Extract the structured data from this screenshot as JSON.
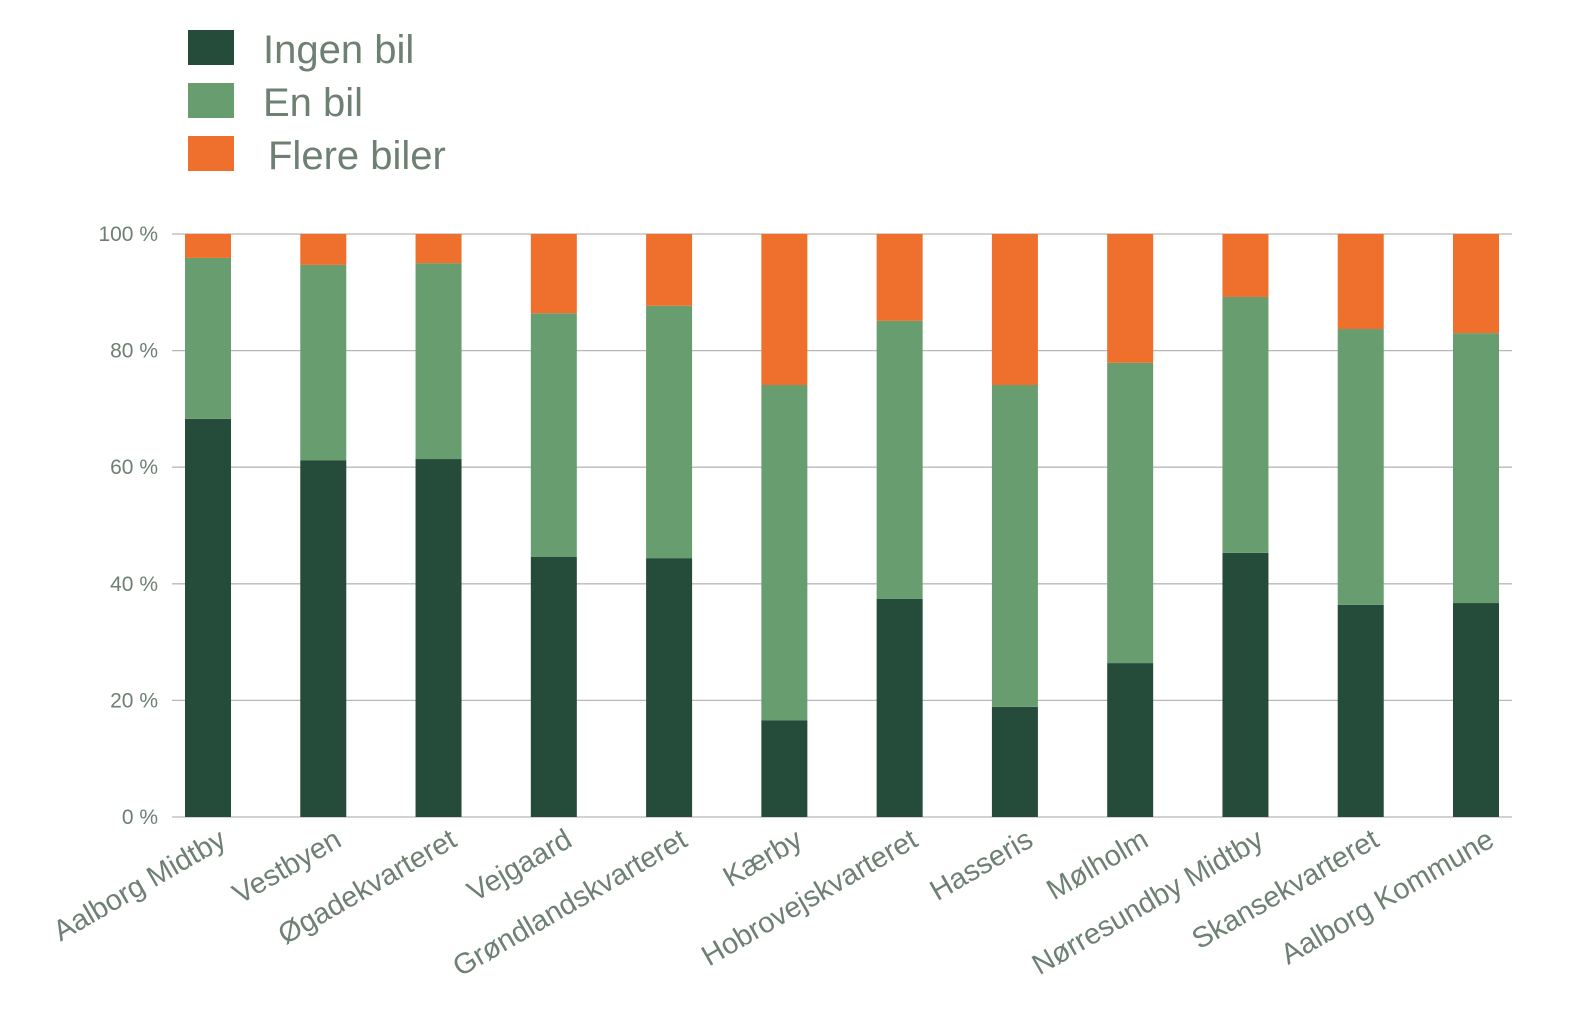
{
  "chart_data": {
    "type": "bar",
    "stacked": true,
    "percent": true,
    "categories": [
      "Aalborg Midtby",
      "Vestbyen",
      "Øgadekvarteret",
      "Vejgaard",
      "Grøndlandskvarteret",
      "Kærby",
      "Hobrovejskvarteret",
      "Hasseris",
      "Mølholm",
      "Nørresundby Midtby",
      "Skansekvarteret",
      "Aalborg Kommune"
    ],
    "series": [
      {
        "name": "Ingen bil",
        "color": "#254b3a",
        "values": [
          68.3,
          61.2,
          61.4,
          44.6,
          44.4,
          16.6,
          37.4,
          18.9,
          26.4,
          45.3,
          36.4,
          36.7
        ]
      },
      {
        "name": "En bil",
        "color": "#679d6f",
        "values": [
          27.6,
          33.5,
          33.6,
          41.8,
          43.3,
          57.5,
          47.7,
          55.2,
          51.5,
          43.9,
          47.3,
          46.3
        ]
      },
      {
        "name": "Flere biler",
        "color": "#ee702c",
        "values": [
          4.1,
          5.3,
          5.0,
          13.6,
          12.3,
          25.9,
          14.9,
          25.9,
          22.1,
          10.8,
          16.3,
          17.0
        ]
      }
    ],
    "ylim": [
      0,
      100
    ],
    "yticks": [
      "0 %",
      "20 %",
      "40 %",
      "60 %",
      "80 %",
      "100 %"
    ],
    "grid": true,
    "legend": "top-left",
    "title": "",
    "xlabel": "",
    "ylabel": ""
  }
}
